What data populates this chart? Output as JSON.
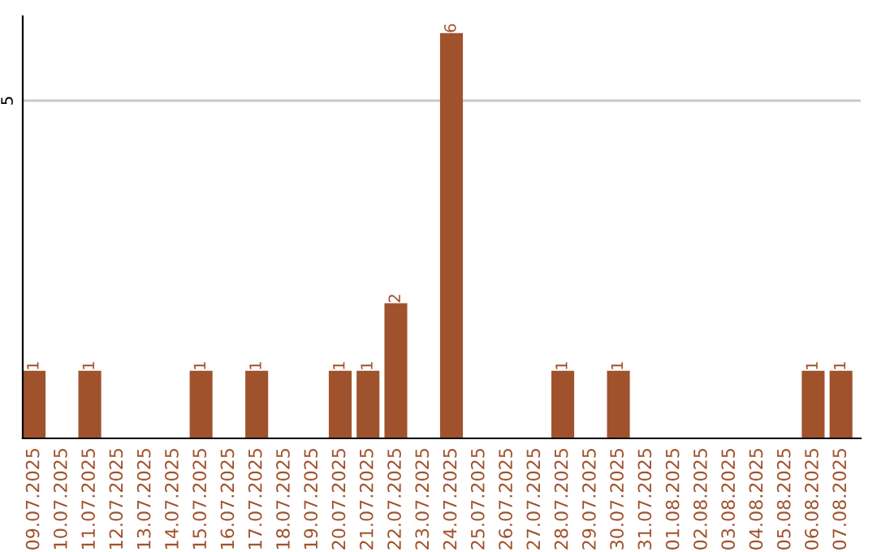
{
  "chart_data": {
    "type": "bar",
    "categories": [
      "09.07.2025",
      "10.07.2025",
      "11.07.2025",
      "12.07.2025",
      "13.07.2025",
      "14.07.2025",
      "15.07.2025",
      "16.07.2025",
      "17.07.2025",
      "18.07.2025",
      "19.07.2025",
      "20.07.2025",
      "21.07.2025",
      "22.07.2025",
      "23.07.2025",
      "24.07.2025",
      "25.07.2025",
      "26.07.2025",
      "27.07.2025",
      "28.07.2025",
      "29.07.2025",
      "30.07.2025",
      "31.07.2025",
      "01.08.2025",
      "02.08.2025",
      "03.08.2025",
      "04.08.2025",
      "05.08.2025",
      "06.08.2025",
      "07.08.2025"
    ],
    "values": [
      1,
      0,
      1,
      0,
      0,
      0,
      1,
      0,
      1,
      0,
      0,
      1,
      1,
      2,
      0,
      6,
      0,
      0,
      0,
      1,
      0,
      1,
      0,
      0,
      0,
      0,
      0,
      0,
      1,
      1
    ],
    "value_labels": [
      "1",
      null,
      "1",
      null,
      null,
      null,
      "1",
      null,
      "1",
      null,
      null,
      "1",
      "1",
      "2",
      null,
      "6",
      null,
      null,
      null,
      "1",
      null,
      "1",
      null,
      null,
      null,
      null,
      null,
      null,
      "1",
      "1"
    ],
    "color": "#a0522d",
    "ylim": [
      0,
      6.25
    ],
    "yticks": [
      5
    ],
    "grid": "y"
  }
}
